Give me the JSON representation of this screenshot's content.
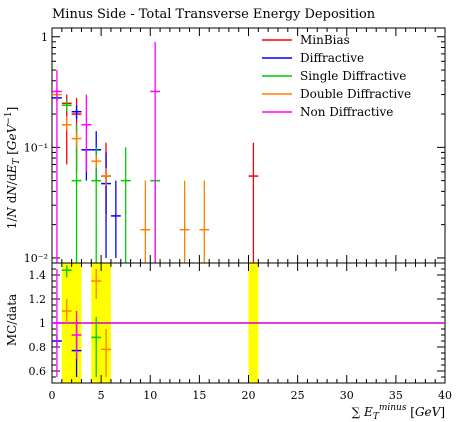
{
  "chart_data": {
    "type": "scatter",
    "title": "Minus Side - Total Transverse Energy Deposition",
    "xlabel": "∑ E_T^minus [GeV]",
    "ylabel_main": "1/N dN/dE_T [GeV^-1]",
    "ylabel_ratio": "MC/data",
    "xlim": [
      0,
      40
    ],
    "ylim_main": [
      0.009,
      1.2
    ],
    "y_scale_main": "log",
    "ylim_ratio": [
      0.5,
      1.5
    ],
    "x_ticks": [
      0,
      5,
      10,
      15,
      20,
      25,
      30,
      35,
      40
    ],
    "y_ticks_main": [
      {
        "v": 0.01,
        "label": "10⁻²"
      },
      {
        "v": 0.1,
        "label": "10⁻¹"
      },
      {
        "v": 1,
        "label": "1"
      }
    ],
    "y_ticks_ratio": [
      0.6,
      0.8,
      1,
      1.2,
      1.4
    ],
    "legend_position": "top-right",
    "series": [
      {
        "name": "MinBias",
        "color": "#ff0000",
        "points": [
          {
            "x": 1.5,
            "y": 0.25,
            "lo": 0.07,
            "hi": 0.3
          },
          {
            "x": 2.5,
            "y": 0.2,
            "lo": 0.06,
            "hi": 0.28
          },
          {
            "x": 5.5,
            "y": 0.055,
            "lo": 0.025,
            "hi": 0.11
          },
          {
            "x": 20.5,
            "y": 0.055,
            "lo": 0.009,
            "hi": 0.11
          }
        ]
      },
      {
        "name": "Diffractive",
        "color": "#0000ff",
        "points": [
          {
            "x": 0.5,
            "y": 0.28,
            "lo": 0.26,
            "hi": 0.3
          },
          {
            "x": 2.5,
            "y": 0.21,
            "lo": 0.18,
            "hi": 0.24
          },
          {
            "x": 3.5,
            "y": 0.095,
            "lo": 0.05,
            "hi": 0.095
          },
          {
            "x": 4.5,
            "y": 0.095,
            "lo": 0.05,
            "hi": 0.14
          },
          {
            "x": 5.5,
            "y": 0.047,
            "lo": 0.01,
            "hi": 0.09
          },
          {
            "x": 6.5,
            "y": 0.024,
            "lo": 0.01,
            "hi": 0.05
          }
        ]
      },
      {
        "name": "Single Diffractive",
        "color": "#00cc00",
        "points": [
          {
            "x": 1.5,
            "y": 0.24,
            "lo": 0.21,
            "hi": 0.27
          },
          {
            "x": 2.5,
            "y": 0.05,
            "lo": 0.009,
            "hi": 0.16
          },
          {
            "x": 4.5,
            "y": 0.05,
            "lo": 0.009,
            "hi": 0.1
          },
          {
            "x": 7.5,
            "y": 0.05,
            "lo": 0.009,
            "hi": 0.1
          },
          {
            "x": 10.5,
            "y": 0.05,
            "lo": 0.009,
            "hi": 0.05
          }
        ]
      },
      {
        "name": "Double Diffractive",
        "color": "#ff8000",
        "points": [
          {
            "x": 0.5,
            "y": 0.3,
            "lo": 0.28,
            "hi": 0.33
          },
          {
            "x": 1.5,
            "y": 0.16,
            "lo": 0.14,
            "hi": 0.19
          },
          {
            "x": 2.5,
            "y": 0.12,
            "lo": 0.1,
            "hi": 0.14
          },
          {
            "x": 4.5,
            "y": 0.075,
            "lo": 0.065,
            "hi": 0.085
          },
          {
            "x": 5.5,
            "y": 0.055,
            "lo": 0.045,
            "hi": 0.065
          },
          {
            "x": 9.5,
            "y": 0.018,
            "lo": 0.009,
            "hi": 0.05
          },
          {
            "x": 13.5,
            "y": 0.018,
            "lo": 0.009,
            "hi": 0.05
          },
          {
            "x": 15.5,
            "y": 0.018,
            "lo": 0.009,
            "hi": 0.05
          }
        ]
      },
      {
        "name": "Non Diffractive",
        "color": "#ff00ff",
        "points": [
          {
            "x": 0.5,
            "y": 0.32,
            "lo": 0.009,
            "hi": 0.5
          },
          {
            "x": 3.5,
            "y": 0.16,
            "lo": 0.06,
            "hi": 0.3
          },
          {
            "x": 10.5,
            "y": 0.32,
            "lo": 0.009,
            "hi": 0.9
          }
        ]
      }
    ],
    "ratio_bands": [
      {
        "x0": 1,
        "x1": 3
      },
      {
        "x0": 4,
        "x1": 6
      },
      {
        "x0": 20,
        "x1": 21
      }
    ],
    "ratio_points": [
      {
        "color": "#0000ff",
        "x": 0.5,
        "y": 0.85,
        "lo": 0.8,
        "hi": 0.9
      },
      {
        "color": "#0000ff",
        "x": 2.5,
        "y": 0.77,
        "lo": 0.55,
        "hi": 1.02
      },
      {
        "color": "#00cc00",
        "x": 1.5,
        "y": 1.44,
        "lo": 1.38,
        "hi": 1.48
      },
      {
        "color": "#00cc00",
        "x": 4.5,
        "y": 0.88,
        "lo": 0.55,
        "hi": 1.05
      },
      {
        "color": "#ff8000",
        "x": 1.5,
        "y": 1.1,
        "lo": 1.0,
        "hi": 1.2
      },
      {
        "color": "#ff8000",
        "x": 4.5,
        "y": 1.35,
        "lo": 1.2,
        "hi": 1.45
      },
      {
        "color": "#ff8000",
        "x": 5.5,
        "y": 0.78,
        "lo": 0.55,
        "hi": 0.95
      },
      {
        "color": "#ff00ff",
        "x": 0.5,
        "y": 1.0,
        "lo": 0.55,
        "hi": 1.45
      },
      {
        "color": "#ff00ff",
        "x": 2.5,
        "y": 0.9,
        "lo": 0.7,
        "hi": 1.1
      }
    ],
    "ratio_reference": {
      "y": 1,
      "color": "#cc00cc"
    }
  }
}
